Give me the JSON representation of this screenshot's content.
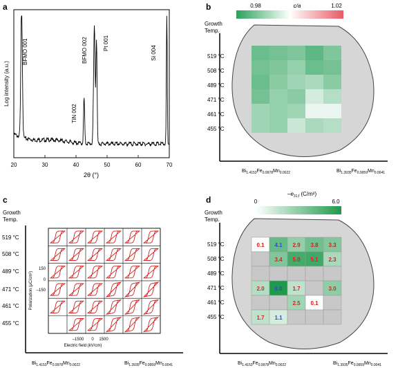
{
  "panels": {
    "a": {
      "label": "a",
      "peaks": [
        "BFMO 001",
        "TiN 002",
        "BFMO 002",
        "Pt 001",
        "Si 004"
      ],
      "xlabel": "2θ (°)",
      "ylabel": "Log intensity (a.u.)",
      "xticks": [
        "20",
        "30",
        "40",
        "50",
        "60",
        "70"
      ]
    },
    "b": {
      "label": "b",
      "colorbar_title": "c/a",
      "colorbar_min": "0.98",
      "colorbar_max": "1.02",
      "ylabel_line1": "Growth",
      "ylabel_line2": "Temp.",
      "temps": [
        "519 °C",
        "508 °C",
        "489 °C",
        "471 °C",
        "461 °C",
        "455 °C"
      ],
      "comp_left": {
        "base": "Bi",
        "s1": "1.4153",
        "f": "Fe",
        "s2": "0.9978",
        "m": "Mn",
        "s3": "0.0022"
      },
      "comp_right": {
        "base": "Bi",
        "s1": "1.3935",
        "f": "Fe",
        "s2": "0.9959",
        "m": "Mn",
        "s3": "0.0041"
      }
    },
    "c": {
      "label": "c",
      "ylabel_line1": "Growth",
      "ylabel_line2": "Temp.",
      "temps": [
        "519 °C",
        "508 °C",
        "489 °C",
        "471 °C",
        "461 °C",
        "455 °C"
      ],
      "inset_ylabel": "Polarization (μC/cm²)",
      "inset_yticks": [
        "150",
        "0",
        "–150"
      ],
      "inset_xticks": [
        "–1500",
        "0",
        "1500"
      ],
      "inset_xlabel": "Electric field (kV/cm)",
      "comp_left": {
        "base": "Bi",
        "s1": "1.4153",
        "f": "Fe",
        "s2": "0.9978",
        "m": "Mn",
        "s3": "0.0022"
      },
      "comp_right": {
        "base": "Bi",
        "s1": "1.3935",
        "f": "Fe",
        "s2": "0.9959",
        "m": "Mn",
        "s3": "0.0041"
      }
    },
    "d": {
      "label": "d",
      "colorbar_title_base": "–e",
      "colorbar_title_sub": "31,f",
      "colorbar_title_unit": " (C/m²)",
      "colorbar_min": "0",
      "colorbar_max": "6.0",
      "ylabel_line1": "Growth",
      "ylabel_line2": "Temp.",
      "temps": [
        "519 °C",
        "508 °C",
        "489 °C",
        "471 °C",
        "461 °C",
        "455 °C"
      ],
      "comp_left": {
        "base": "Bi",
        "s1": "1.4153",
        "f": "Fe",
        "s2": "0.9978",
        "m": "Mn",
        "s3": "0.0022"
      },
      "comp_right": {
        "base": "Bi",
        "s1": "1.3935",
        "f": "Fe",
        "s2": "0.9959",
        "m": "Mn",
        "s3": "0.0041"
      },
      "cells": [
        [
          "0.1",
          "4.1",
          "2.9",
          "3.8",
          "3.3"
        ],
        [
          "",
          "3.4",
          "5.0",
          "5.1",
          "2.3"
        ],
        [
          "",
          "",
          "",
          "",
          ""
        ],
        [
          "2.0",
          "6.0",
          "1.7",
          "",
          "3.0"
        ],
        [
          "",
          "",
          "2.5",
          "0.1",
          ""
        ],
        [
          "1.7",
          "1.1",
          "",
          "",
          ""
        ]
      ]
    }
  },
  "colors": {
    "green_dark": "#1f9a4c",
    "red_bar": "#e85a66",
    "wafer": "#d6d6d6",
    "label_red": "#d42020",
    "label_blue": "#2a4fb8",
    "loop_red": "#d42020"
  },
  "chart_data": [
    {
      "type": "line",
      "title": "",
      "xlabel": "2θ (°)",
      "ylabel": "Log intensity (a.u.)",
      "xlim": [
        20,
        70
      ],
      "log_y": true,
      "peaks": [
        {
          "label": "BFMO 001",
          "x": 22.5
        },
        {
          "label": "TiN 002",
          "x": 42.6
        },
        {
          "label": "BFMO 002",
          "x": 46.0
        },
        {
          "label": "Pt 001",
          "x": 46.5
        },
        {
          "label": "Si 004",
          "x": 69.2
        }
      ]
    },
    {
      "type": "heatmap",
      "colorbar": "c/a",
      "range": [
        0.98,
        1.02
      ],
      "rows": [
        "519 °C",
        "508 °C",
        "489 °C",
        "471 °C",
        "461 °C",
        "455 °C"
      ],
      "values": [
        [
          0.986,
          0.987,
          0.988,
          0.985,
          0.988
        ],
        [
          0.987,
          0.988,
          0.99,
          0.986,
          0.987
        ],
        [
          0.986,
          0.989,
          0.991,
          0.992,
          0.989
        ],
        [
          0.987,
          0.99,
          0.989,
          0.996,
          0.993
        ],
        [
          0.991,
          0.99,
          0.991,
          0.998,
          0.998
        ],
        [
          0.991,
          0.99,
          0.995,
          0.992,
          0.993
        ]
      ]
    },
    {
      "type": "heatmap",
      "colorbar": "–e31,f (C/m²)",
      "range": [
        0,
        6.0
      ],
      "rows": [
        "519 °C",
        "508 °C",
        "489 °C",
        "471 °C",
        "461 °C",
        "455 °C"
      ],
      "values": [
        [
          0.1,
          4.1,
          2.9,
          3.8,
          3.3
        ],
        [
          null,
          3.4,
          5.0,
          5.1,
          2.3
        ],
        [
          null,
          null,
          null,
          null,
          null
        ],
        [
          2.0,
          6.0,
          1.7,
          null,
          3.0
        ],
        [
          null,
          null,
          2.5,
          0.1,
          null
        ],
        [
          1.7,
          1.1,
          null,
          null,
          null
        ]
      ]
    }
  ]
}
